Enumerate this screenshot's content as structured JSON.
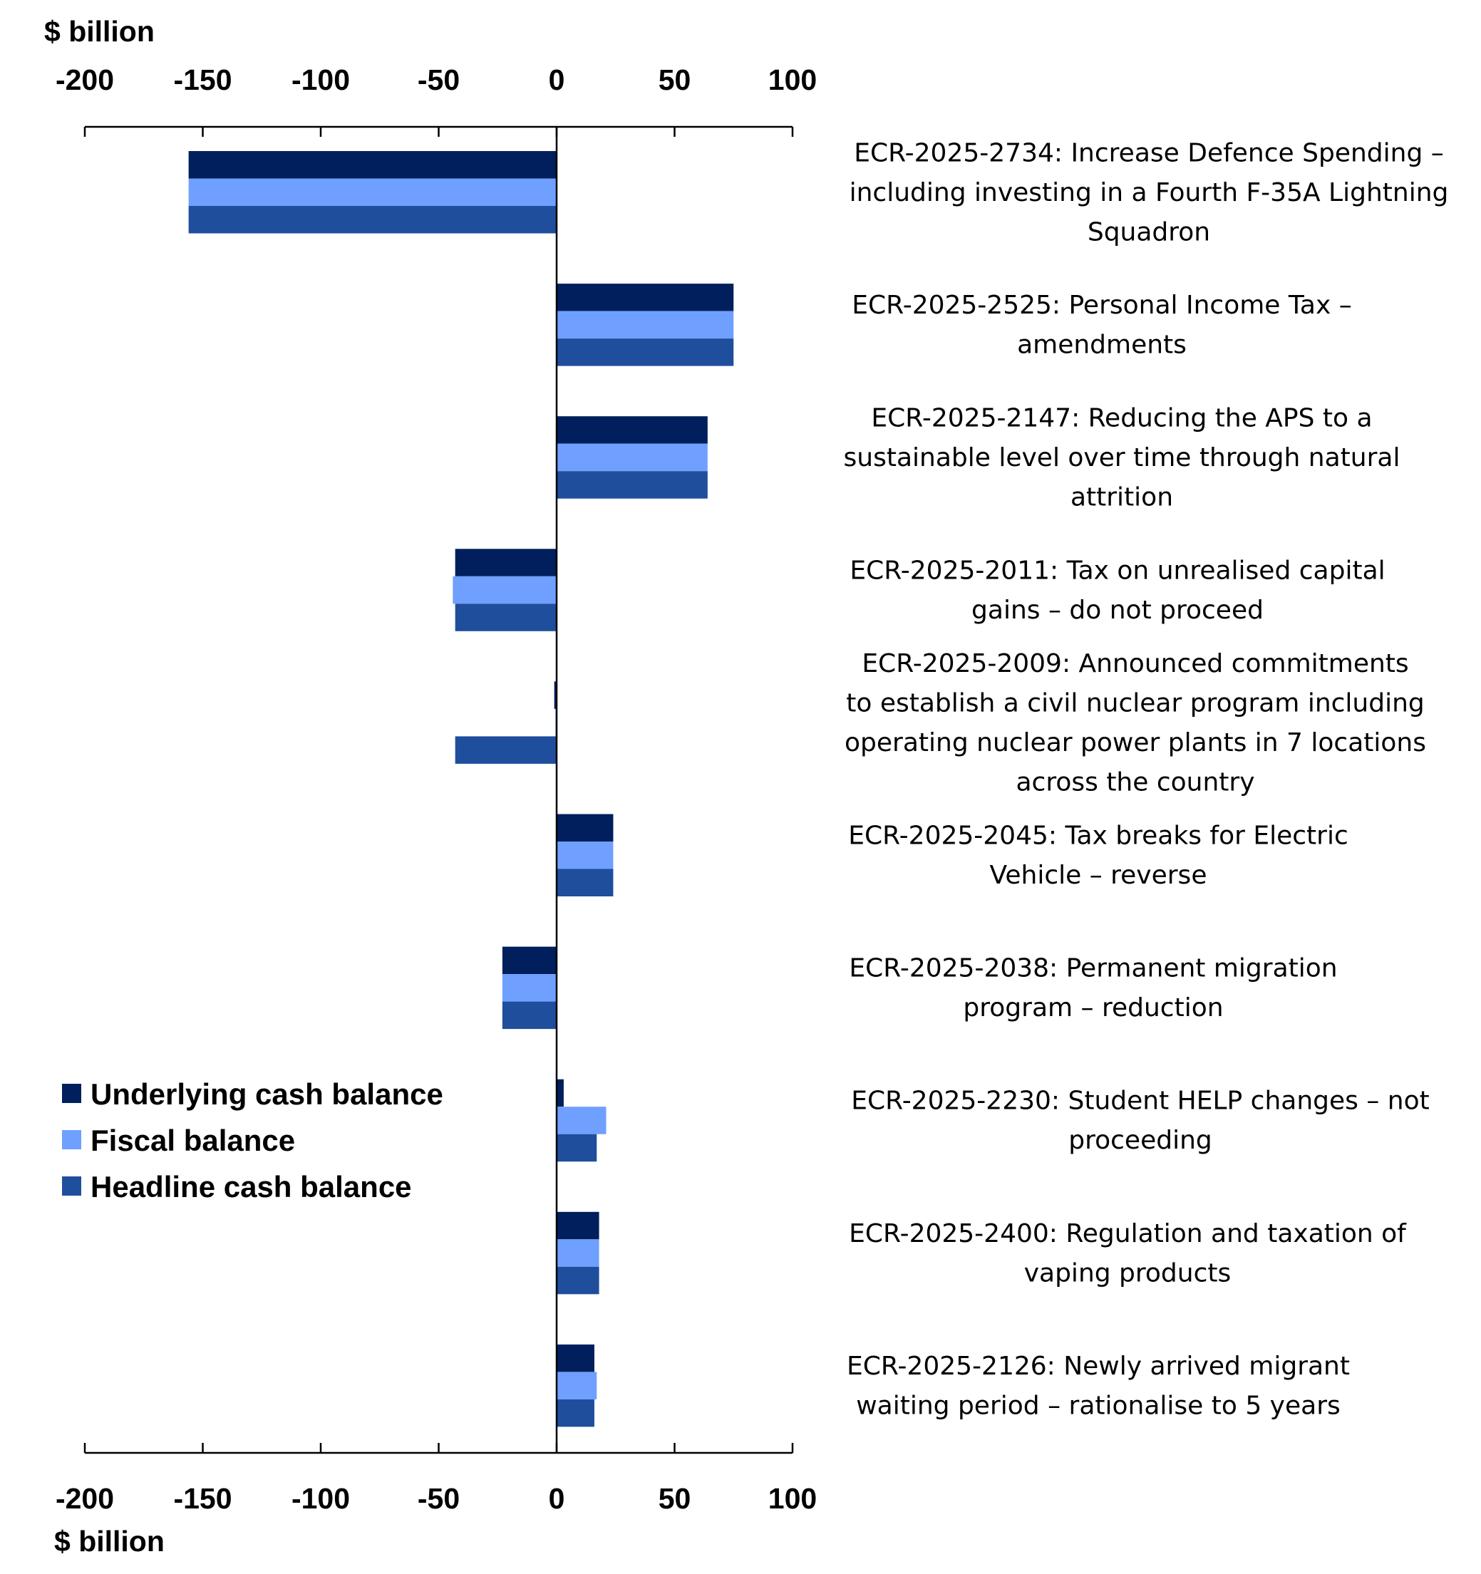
{
  "chart_data": {
    "type": "bar",
    "orientation": "horizontal",
    "xlabel_top": "$ billion",
    "xlabel_bottom": "$ billion",
    "xlim": [
      -200,
      100
    ],
    "xticks": [
      "-200",
      "-150",
      "-100",
      "-50",
      "0",
      "50",
      "100"
    ],
    "xtick_values": [
      -200,
      -150,
      -100,
      -50,
      0,
      50,
      100
    ],
    "legend_position": "lower-left",
    "grid": false,
    "categories": [
      [
        "ECR-2025-2734:  Increase Defence Spending –",
        "including investing in a Fourth F-35A Lightning",
        "Squadron"
      ],
      [
        "ECR-2025-2525:  Personal Income Tax –",
        "amendments"
      ],
      [
        "ECR-2025-2147:  Reducing the APS to a",
        "sustainable level over time through natural",
        "attrition"
      ],
      [
        "ECR-2025-2011:  Tax on unrealised capital",
        "gains – do not proceed"
      ],
      [
        "ECR-2025-2009:  Announced commitments",
        "to establish a civil nuclear program including",
        "operating nuclear power plants in 7 locations",
        "across the country"
      ],
      [
        "ECR-2025-2045:  Tax breaks for Electric",
        "Vehicle – reverse"
      ],
      [
        "ECR-2025-2038:  Permanent migration",
        "program – reduction"
      ],
      [
        "ECR-2025-2230:  Student HELP changes – not",
        "proceeding"
      ],
      [
        "ECR-2025-2400:  Regulation and taxation of",
        "vaping products"
      ],
      [
        "ECR-2025-2126:  Newly arrived migrant",
        "waiting period – rationalise to 5 years"
      ]
    ],
    "series": [
      {
        "name": "Underlying cash balance",
        "color": "#001f5c",
        "values": [
          -156,
          75,
          64,
          -43,
          -1,
          24,
          -23,
          3,
          18,
          16
        ]
      },
      {
        "name": "Fiscal balance",
        "color": "#6fa0ff",
        "values": [
          -156,
          75,
          64,
          -44,
          -0.5,
          24,
          -23,
          21,
          18,
          17
        ]
      },
      {
        "name": "Headline cash balance",
        "color": "#1f4e9c",
        "values": [
          -156,
          75,
          64,
          -43,
          -43,
          24,
          -23,
          17,
          18,
          16
        ]
      }
    ]
  }
}
